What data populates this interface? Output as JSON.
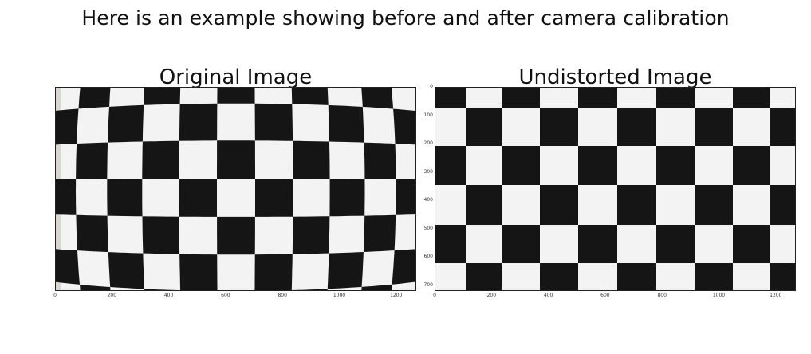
{
  "figure": {
    "title": "Here is an example showing before and after camera calibration"
  },
  "panels": [
    {
      "title": "Original Image",
      "x_ticks": [
        "0",
        "200",
        "400",
        "600",
        "800",
        "1000",
        "1200"
      ],
      "y_ticks": [],
      "distorted": true
    },
    {
      "title": "Undistorted Image",
      "x_ticks": [
        "0",
        "200",
        "400",
        "600",
        "800",
        "1000",
        "1200"
      ],
      "y_ticks": [
        "0",
        "100",
        "200",
        "300",
        "400",
        "500",
        "600",
        "700"
      ],
      "distorted": false
    }
  ],
  "colors": {
    "black_square": "#151515",
    "white_square": "#f3f3f3",
    "edge_shadow": "#d9d6cf"
  }
}
